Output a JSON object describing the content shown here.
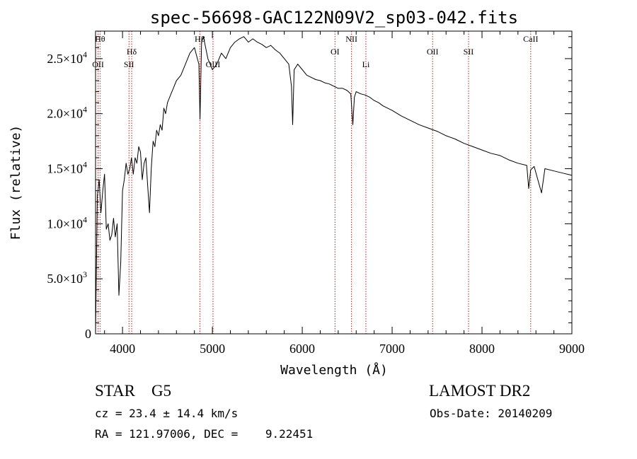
{
  "chart_data": {
    "type": "line",
    "title": "spec-56698-GAC122N09V2_sp03-042.fits",
    "xlabel": "Wavelength (Å)",
    "ylabel": "Flux (relative)",
    "xlim": [
      3700,
      9000
    ],
    "ylim": [
      0,
      27500
    ],
    "xticks": [
      4000,
      5000,
      6000,
      7000,
      8000,
      9000
    ],
    "yticks": [
      {
        "value": 0,
        "mant": "0",
        "exp": ""
      },
      {
        "value": 5000,
        "mant": "5.0×10",
        "exp": "3"
      },
      {
        "value": 10000,
        "mant": "1.0×10",
        "exp": "4"
      },
      {
        "value": 15000,
        "mant": "1.5×10",
        "exp": "4"
      },
      {
        "value": 20000,
        "mant": "2.0×10",
        "exp": "4"
      },
      {
        "value": 25000,
        "mant": "2.5×10",
        "exp": "4"
      }
    ],
    "grid": false,
    "series": [
      {
        "x": [
          3700,
          3720,
          3740,
          3760,
          3780,
          3800,
          3820,
          3840,
          3860,
          3880,
          3900,
          3920,
          3940,
          3960,
          3980,
          4000,
          4020,
          4040,
          4060,
          4080,
          4100,
          4120,
          4140,
          4160,
          4180,
          4200,
          4220,
          4240,
          4260,
          4280,
          4300,
          4320,
          4340,
          4360,
          4380,
          4400,
          4420,
          4440,
          4460,
          4480,
          4500,
          4550,
          4600,
          4650,
          4700,
          4750,
          4800,
          4850,
          4862,
          4880,
          4900,
          4950,
          5000,
          5050,
          5100,
          5150,
          5200,
          5250,
          5300,
          5350,
          5400,
          5450,
          5500,
          5550,
          5600,
          5650,
          5700,
          5750,
          5800,
          5850,
          5880,
          5893,
          5910,
          5950,
          6000,
          6050,
          6100,
          6150,
          6200,
          6250,
          6300,
          6350,
          6400,
          6450,
          6500,
          6540,
          6563,
          6580,
          6600,
          6650,
          6700,
          6750,
          6800,
          6850,
          6900,
          6950,
          7000,
          7100,
          7200,
          7300,
          7400,
          7500,
          7600,
          7700,
          7800,
          7900,
          8000,
          8100,
          8200,
          8300,
          8400,
          8498,
          8520,
          8542,
          8580,
          8662,
          8700,
          8800,
          8900,
          9000
        ],
        "y": [
          0,
          12500,
          14000,
          11000,
          13000,
          14500,
          9500,
          10000,
          8500,
          9000,
          10500,
          8800,
          10000,
          3500,
          6500,
          13000,
          14000,
          15500,
          14500,
          15000,
          16000,
          14500,
          16000,
          15500,
          17000,
          16500,
          14000,
          15500,
          16000,
          13500,
          11000,
          15000,
          17500,
          17000,
          18500,
          18000,
          19000,
          18500,
          20500,
          20000,
          21000,
          22000,
          23000,
          23500,
          24500,
          25500,
          26000,
          24500,
          19500,
          26500,
          27000,
          25000,
          24000,
          24500,
          25500,
          25000,
          26000,
          26500,
          26800,
          27000,
          26500,
          26800,
          26500,
          26300,
          26000,
          26200,
          25800,
          25500,
          25000,
          24500,
          22500,
          19000,
          24000,
          24500,
          24000,
          23500,
          23300,
          23100,
          23000,
          22800,
          22700,
          22500,
          22300,
          22300,
          22100,
          21800,
          19000,
          21500,
          22000,
          21800,
          21700,
          21500,
          21200,
          21000,
          20700,
          20500,
          20300,
          19800,
          19400,
          19000,
          18700,
          18400,
          18000,
          17700,
          17300,
          17000,
          16700,
          16400,
          16200,
          15800,
          15500,
          15300,
          13200,
          14900,
          15200,
          12800,
          15000,
          14800,
          14600,
          14400
        ]
      }
    ],
    "lines": [
      {
        "wave": 3750,
        "label": "Hθ",
        "row": 0,
        "anchor": "middle",
        "dx": 0
      },
      {
        "wave": 3728,
        "label": "OII",
        "row": 2,
        "anchor": "middle",
        "dx": 0
      },
      {
        "wave": 4102,
        "label": "Hδ",
        "row": 1,
        "anchor": "middle",
        "dx": 0
      },
      {
        "wave": 4072,
        "label": "SII",
        "row": 2,
        "anchor": "middle",
        "dx": 0
      },
      {
        "wave": 4861,
        "label": "Hβ",
        "row": 0,
        "anchor": "middle",
        "dx": 0
      },
      {
        "wave": 5007,
        "label": "OIII",
        "row": 2,
        "anchor": "middle",
        "dx": 0
      },
      {
        "wave": 6364,
        "label": "OI",
        "row": 1,
        "anchor": "middle",
        "dx": 0
      },
      {
        "wave": 6548,
        "label": "NII",
        "row": 0,
        "anchor": "middle",
        "dx": 0
      },
      {
        "wave": 6708,
        "label": "Li",
        "row": 2,
        "anchor": "middle",
        "dx": 0
      },
      {
        "wave": 7450,
        "label": "OII",
        "row": 1,
        "anchor": "middle",
        "dx": 0
      },
      {
        "wave": 7850,
        "label": "SII",
        "row": 1,
        "anchor": "middle",
        "dx": 0
      },
      {
        "wave": 8542,
        "label": "CaII",
        "row": 0,
        "anchor": "middle",
        "dx": 0
      }
    ],
    "colors": {
      "line": "#000000",
      "marker": "#b22222"
    }
  },
  "info": {
    "class_line": "STAR    G5",
    "survey": "LAMOST DR2",
    "cz": "cz = 23.4 ± 14.4 km/s",
    "obs_date": "Obs-Date: 20140209",
    "coords": "RA = 121.97006, DEC =    9.22451"
  }
}
